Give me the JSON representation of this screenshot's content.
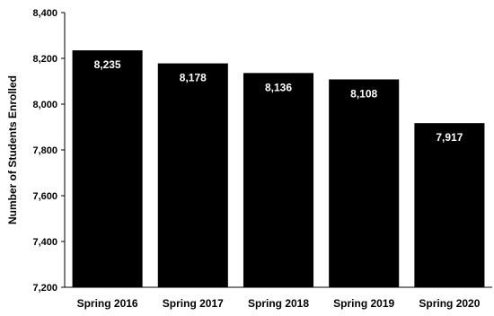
{
  "chart_data": {
    "type": "bar",
    "title": "",
    "xlabel": "",
    "ylabel": "Number of Students Enrolled",
    "categories": [
      "Spring 2016",
      "Spring 2017",
      "Spring 2018",
      "Spring 2019",
      "Spring 2020"
    ],
    "values": [
      8235,
      8178,
      8136,
      8108,
      7917
    ],
    "data_labels": [
      "8,235",
      "8,178",
      "8,136",
      "8,108",
      "7,917"
    ],
    "ylim": [
      7200,
      8400
    ],
    "yticks": [
      7200,
      7400,
      7600,
      7800,
      8000,
      8200,
      8400
    ],
    "ytick_labels": [
      "7,200",
      "7,400",
      "7,600",
      "7,800",
      "8,000",
      "8,200",
      "8,400"
    ],
    "bar_color": "#000000",
    "label_color": "#ffffff",
    "grid": false,
    "legend": "none"
  }
}
